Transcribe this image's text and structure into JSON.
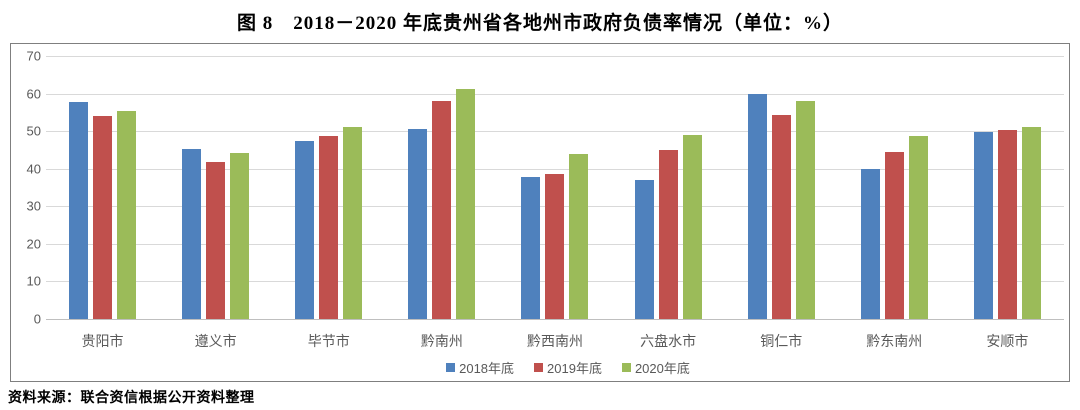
{
  "title": "图 8　2018－2020 年底贵州省各地州市政府负债率情况（单位：%）",
  "source_note": "资料来源：联合资信根据公开资料整理",
  "colors": {
    "series_2018": "#4f81bd",
    "series_2019": "#c0504d",
    "series_2020": "#9bbb59",
    "gridline": "#d9d9d9",
    "axis_line": "#bfbfbf",
    "tick_text": "#595959",
    "chart_border": "#7f7f7f"
  },
  "chart_data": {
    "type": "bar",
    "title": "图 8　2018－2020 年底贵州省各地州市政府负债率情况（单位：%）",
    "categories": [
      "贵阳市",
      "遵义市",
      "毕节市",
      "黔南州",
      "黔西南州",
      "六盘水市",
      "铜仁市",
      "黔东南州",
      "安顺市"
    ],
    "series": [
      {
        "name": "2018年底",
        "color": "#4f81bd",
        "values": [
          57.7,
          45.3,
          47.3,
          50.5,
          37.9,
          37.1,
          60.0,
          40.0,
          49.9
        ]
      },
      {
        "name": "2019年底",
        "color": "#c0504d",
        "values": [
          54.1,
          41.8,
          48.7,
          58.0,
          38.6,
          44.9,
          54.3,
          44.5,
          50.4
        ]
      },
      {
        "name": "2020年底",
        "color": "#9bbb59",
        "values": [
          55.4,
          44.3,
          51.2,
          61.1,
          44.0,
          48.9,
          57.9,
          48.8,
          51.1
        ]
      }
    ],
    "xlabel": "",
    "ylabel": "",
    "ylim": [
      0,
      70
    ],
    "yticks": [
      0,
      10,
      20,
      30,
      40,
      50,
      60,
      70
    ],
    "grid": true,
    "legend_position": "bottom-inside",
    "unit": "%"
  }
}
